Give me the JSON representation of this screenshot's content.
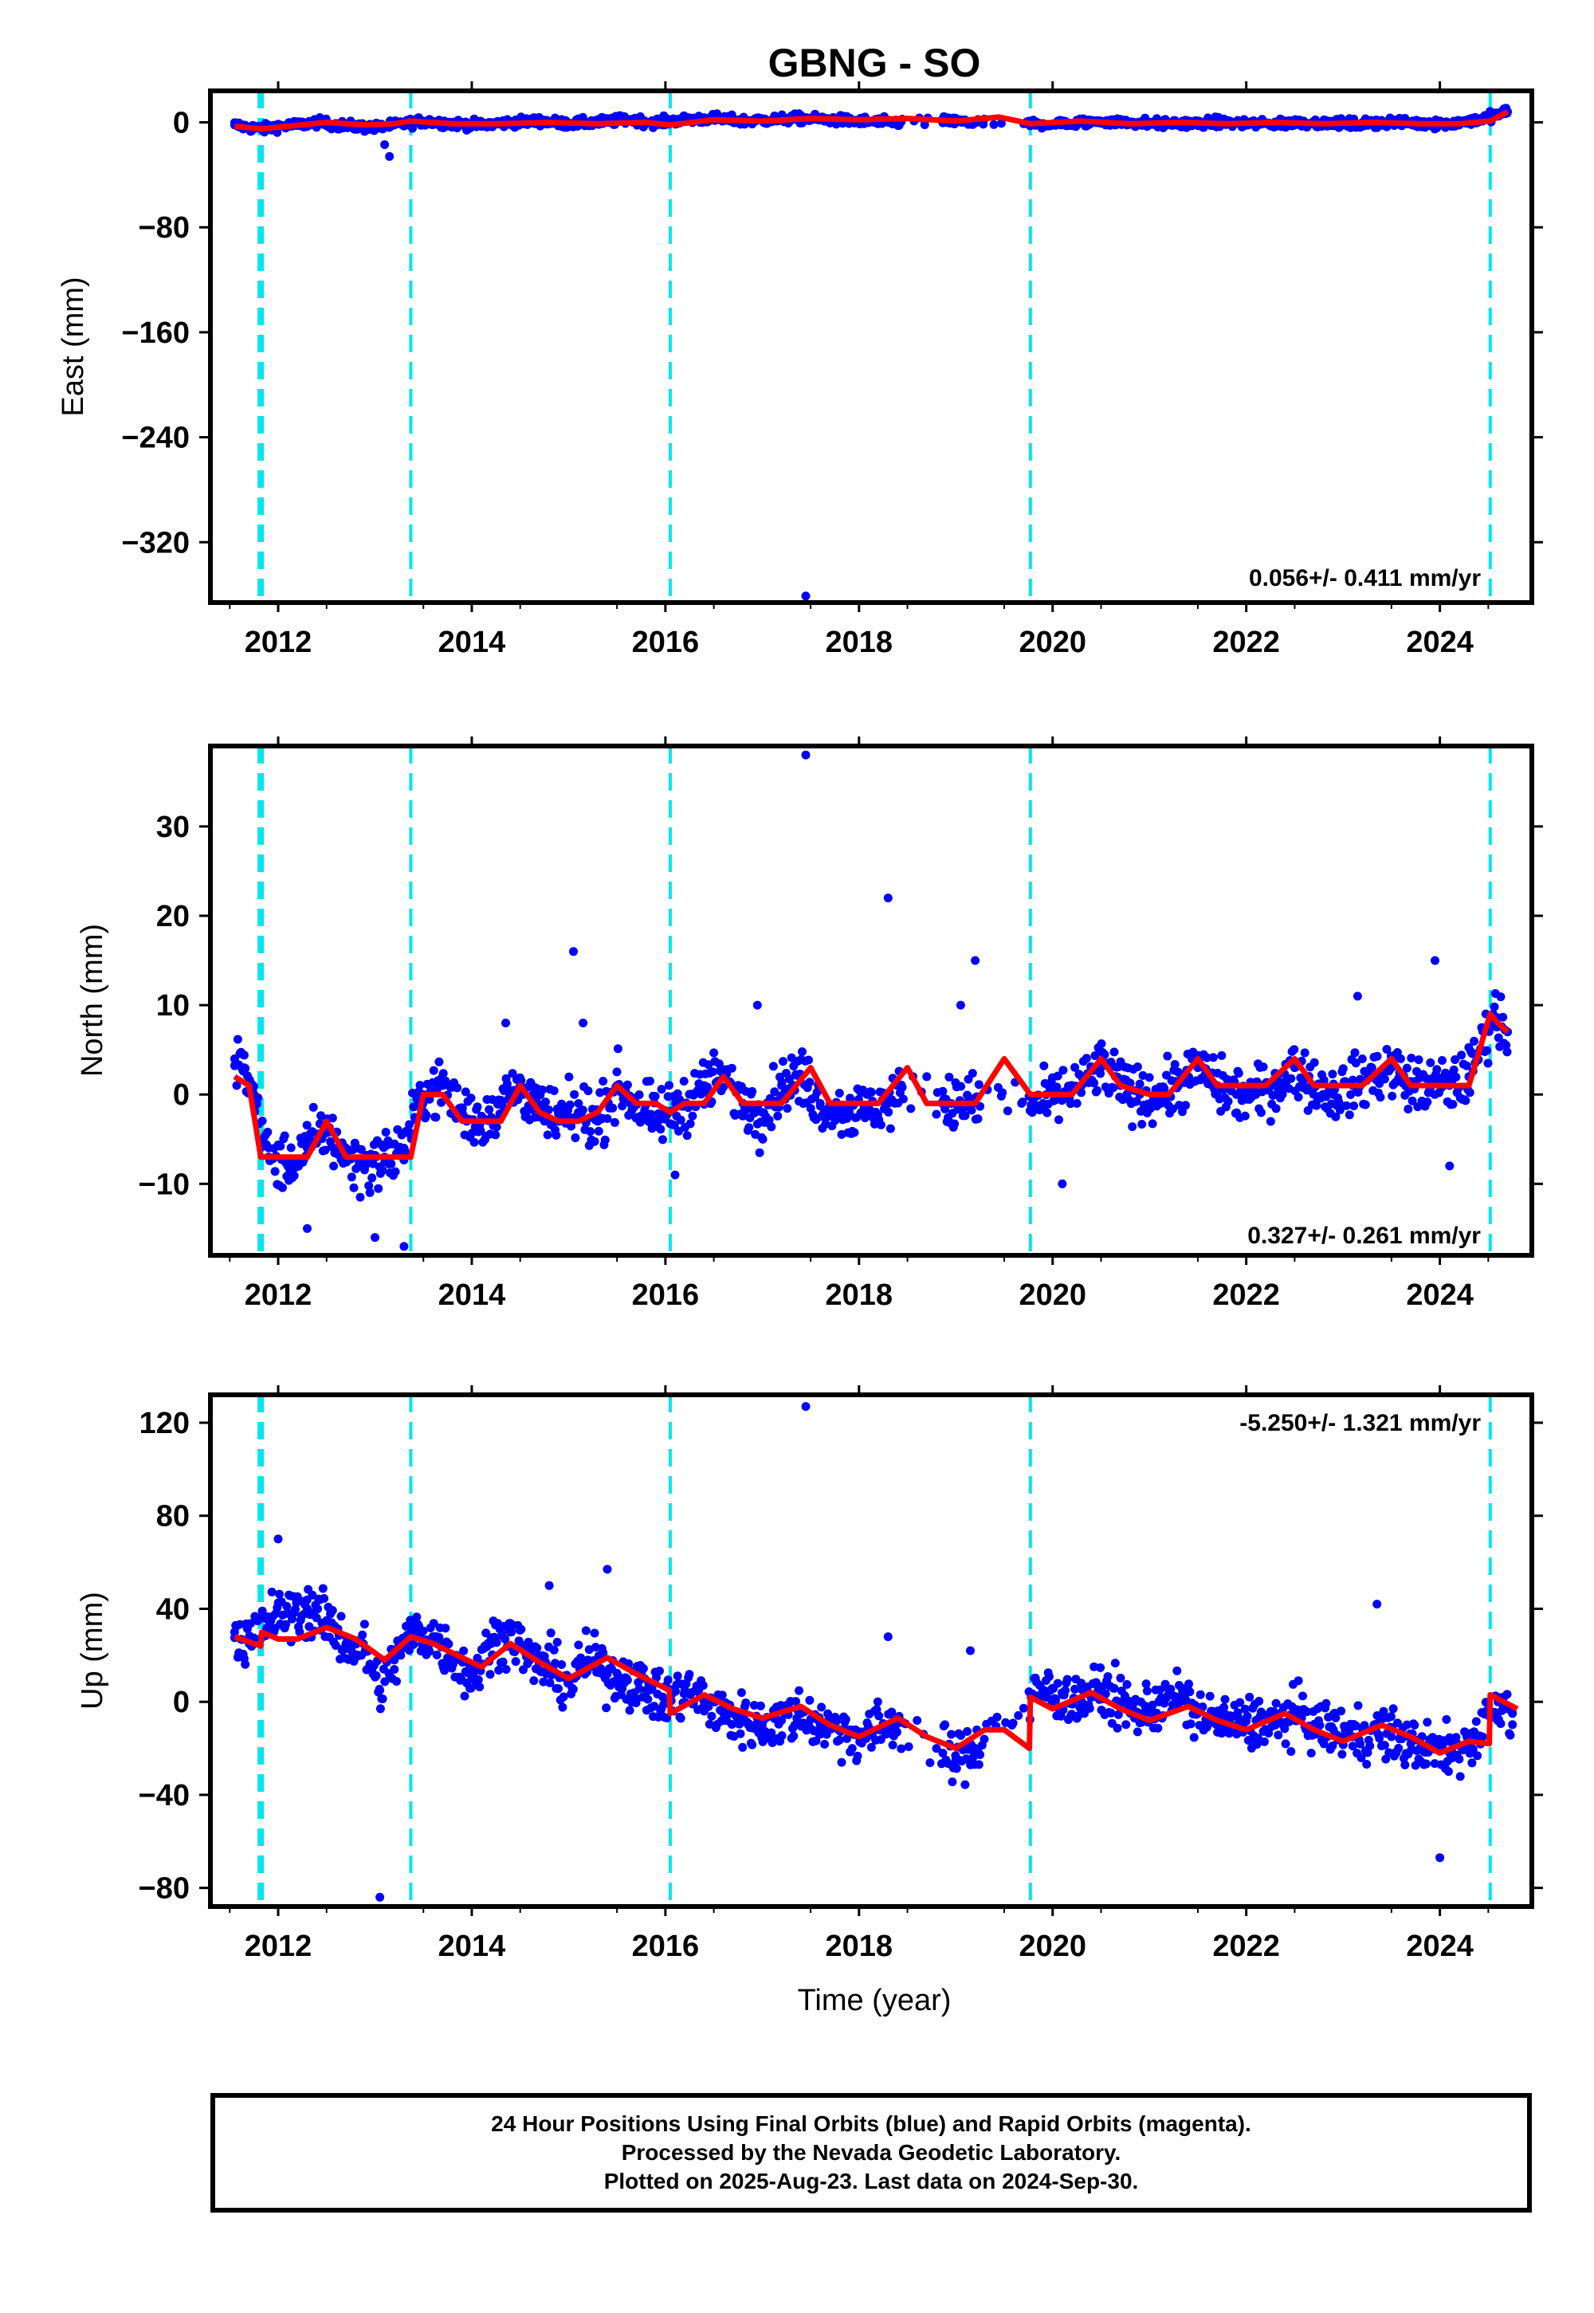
{
  "colors": {
    "final_orbit_points": "#0000ff",
    "model_fit": "#ff0000",
    "offset_lines": "#00e5ee",
    "axes": "#000000"
  },
  "footer": {
    "line1": "24 Hour Positions Using Final Orbits (blue) and Rapid Orbits (magenta).",
    "line2": "Processed by the Nevada Geodetic Laboratory.",
    "line3": "Plotted on 2025-Aug-23. Last data on 2024-Sep-30."
  },
  "chart_data": [
    {
      "type": "scatter",
      "title": "GBNG - SO",
      "ylabel": "East (mm)",
      "xlabel": "",
      "xlim": [
        2011.3,
        2024.95
      ],
      "ylim": [
        -366,
        24
      ],
      "xticks": [
        2012,
        2014,
        2016,
        2018,
        2020,
        2022,
        2024
      ],
      "yticks": [
        0,
        -80,
        -160,
        -240,
        -320
      ],
      "ytick_labels": [
        "0",
        "−80",
        "−160",
        "−240",
        "−320"
      ],
      "rate_label": "0.056+/- 0.411 mm/yr",
      "offset_lines": [
        2011.82,
        2013.37,
        2016.05,
        2019.77,
        2024.52
      ],
      "series": [
        {
          "kind": "points",
          "x": [
            2011.55,
            2011.7,
            2011.85,
            2012.0,
            2012.2,
            2012.4,
            2012.6,
            2012.8,
            2013.0,
            2013.2,
            2013.5,
            2013.8,
            2014.1,
            2014.4,
            2014.7,
            2015.0,
            2015.3,
            2015.6,
            2015.9,
            2016.2,
            2016.5,
            2016.8,
            2017.1,
            2017.4,
            2017.7,
            2018.0,
            2018.3,
            2018.9,
            2019.1,
            2019.9,
            2020.2,
            2020.5,
            2020.8,
            2021.1,
            2021.4,
            2021.7,
            2022.0,
            2022.3,
            2022.6,
            2022.9,
            2023.2,
            2023.5,
            2023.8,
            2024.1,
            2024.4,
            2024.7
          ],
          "y": [
            -2,
            -4,
            -5,
            -3,
            -2,
            0,
            -2,
            -3,
            -4,
            -2,
            1,
            -1,
            -2,
            0,
            1,
            -1,
            0,
            2,
            0,
            2,
            3,
            1,
            2,
            3,
            2,
            1,
            0,
            1,
            0,
            -1,
            -1,
            1,
            0,
            -1,
            -1,
            0,
            -1,
            -1,
            0,
            -1,
            -1,
            0,
            -1,
            -1,
            2,
            8
          ]
        },
        {
          "kind": "outliers",
          "x": [
            2013.1,
            2013.15,
            2017.45
          ],
          "y": [
            -17,
            -26,
            -361
          ]
        },
        {
          "kind": "fit",
          "x": [
            2011.55,
            2011.82,
            2012.1,
            2012.5,
            2012.9,
            2013.2,
            2013.37,
            2013.8,
            2014.3,
            2014.8,
            2015.3,
            2015.8,
            2016.05,
            2016.5,
            2017.0,
            2017.5,
            2018.0,
            2018.5,
            2019.0,
            2019.45,
            2019.77,
            2020.3,
            2020.8,
            2021.3,
            2021.8,
            2022.3,
            2022.8,
            2023.3,
            2023.8,
            2024.2,
            2024.52,
            2024.7
          ],
          "y": [
            -3,
            -5,
            -3,
            0,
            -2,
            -1,
            1,
            -1,
            -1,
            0,
            -1,
            0,
            -2,
            2,
            1,
            3,
            2,
            3,
            1,
            4,
            -1,
            1,
            -1,
            0,
            -1,
            0,
            -1,
            0,
            -1,
            -1,
            1,
            8
          ]
        }
      ]
    },
    {
      "type": "scatter",
      "title": "",
      "ylabel": "North (mm)",
      "xlabel": "",
      "xlim": [
        2011.3,
        2024.95
      ],
      "ylim": [
        -18,
        39
      ],
      "xticks": [
        2012,
        2014,
        2016,
        2018,
        2020,
        2022,
        2024
      ],
      "yticks": [
        30,
        20,
        10,
        0,
        -10
      ],
      "ytick_labels": [
        "30",
        "20",
        "10",
        "0",
        "−10"
      ],
      "rate_label": "0.327+/- 0.261 mm/yr",
      "offset_lines": [
        2011.82,
        2013.37,
        2016.05,
        2019.77,
        2024.52
      ],
      "series": [
        {
          "kind": "points",
          "x": [
            2011.55,
            2011.65,
            2011.75,
            2011.9,
            2012.1,
            2012.3,
            2012.5,
            2012.7,
            2012.9,
            2013.1,
            2013.3,
            2013.5,
            2013.7,
            2013.9,
            2014.1,
            2014.3,
            2014.5,
            2014.7,
            2014.9,
            2015.1,
            2015.3,
            2015.5,
            2015.7,
            2015.9,
            2016.2,
            2016.4,
            2016.6,
            2016.8,
            2017.0,
            2017.2,
            2017.4,
            2017.6,
            2017.9,
            2018.3,
            2018.7,
            2018.9,
            2019.1,
            2019.9,
            2020.1,
            2020.3,
            2020.5,
            2020.7,
            2020.9,
            2021.1,
            2021.3,
            2021.5,
            2021.7,
            2021.9,
            2022.1,
            2022.3,
            2022.5,
            2022.7,
            2022.9,
            2023.1,
            2023.3,
            2023.5,
            2023.7,
            2023.9,
            2024.1,
            2024.3,
            2024.55,
            2024.7
          ],
          "y": [
            4,
            3,
            0,
            -7,
            -8,
            -6,
            -4,
            -7,
            -8,
            -7,
            -6,
            0,
            1,
            -2,
            -3,
            -1,
            1,
            -2,
            -3,
            -2,
            -3,
            1,
            -1,
            -3,
            -1,
            1,
            2,
            -1,
            -2,
            1,
            2,
            -1,
            -2,
            -1,
            2,
            -1,
            -1,
            -1,
            0,
            1,
            3,
            1,
            0,
            0,
            1,
            3,
            1,
            0,
            0,
            1,
            3,
            1,
            0,
            1,
            2,
            3,
            1,
            1,
            1,
            2,
            9,
            7
          ]
        },
        {
          "kind": "outliers",
          "x": [
            2012.3,
            2013.0,
            2013.3,
            2014.35,
            2015.05,
            2015.15,
            2016.1,
            2016.95,
            2017.45,
            2018.3,
            2019.05,
            2019.2,
            2020.1,
            2023.15,
            2023.95,
            2024.1
          ],
          "y": [
            -15,
            -16,
            -17,
            8,
            16,
            8,
            -9,
            10,
            38,
            22,
            10,
            15,
            -10,
            11,
            15,
            -8
          ]
        },
        {
          "kind": "fit",
          "x": [
            2011.55,
            2011.7,
            2011.82,
            2012.1,
            2012.3,
            2012.5,
            2012.7,
            2012.9,
            2013.1,
            2013.37,
            2013.5,
            2013.7,
            2013.9,
            2014.1,
            2014.3,
            2014.5,
            2014.7,
            2014.9,
            2015.1,
            2015.3,
            2015.5,
            2015.7,
            2015.9,
            2016.05,
            2016.2,
            2016.4,
            2016.6,
            2016.8,
            2017.0,
            2017.2,
            2017.5,
            2017.7,
            2018.0,
            2018.2,
            2018.5,
            2018.7,
            2019.0,
            2019.2,
            2019.5,
            2019.77,
            2020.0,
            2020.2,
            2020.5,
            2020.7,
            2021.0,
            2021.2,
            2021.5,
            2021.7,
            2022.0,
            2022.2,
            2022.5,
            2022.7,
            2023.0,
            2023.2,
            2023.5,
            2023.7,
            2024.0,
            2024.3,
            2024.52,
            2024.6,
            2024.7
          ],
          "y": [
            2,
            1,
            -7,
            -7,
            -7,
            -3,
            -7,
            -7,
            -7,
            -7,
            0,
            0,
            -3,
            -3,
            -3,
            1,
            -2,
            -3,
            -3,
            -2,
            1,
            -1,
            -1,
            -2,
            -1,
            -1,
            2,
            -1,
            -1,
            -1,
            3,
            -1,
            -1,
            -1,
            3,
            -1,
            -1,
            -1,
            4,
            0,
            0,
            0,
            4,
            1,
            0,
            0,
            4,
            1,
            1,
            1,
            4,
            1,
            1,
            1,
            4,
            1,
            1,
            1,
            9,
            8,
            7
          ]
        }
      ]
    },
    {
      "type": "scatter",
      "title": "",
      "ylabel": "Up (mm)",
      "xlabel": "Time (year)",
      "xlim": [
        2011.3,
        2024.95
      ],
      "ylim": [
        -88,
        132
      ],
      "xticks": [
        2012,
        2014,
        2016,
        2018,
        2020,
        2022,
        2024
      ],
      "yticks": [
        120,
        80,
        40,
        0,
        -40,
        -80
      ],
      "ytick_labels": [
        "120",
        "80",
        "40",
        "0",
        "−40",
        "−80"
      ],
      "rate_label": "-5.250+/- 1.321 mm/yr",
      "offset_lines": [
        2011.82,
        2013.37,
        2016.05,
        2019.77,
        2024.52
      ],
      "series": [
        {
          "kind": "points",
          "x": [
            2011.55,
            2011.7,
            2011.9,
            2012.1,
            2012.3,
            2012.5,
            2012.7,
            2012.9,
            2013.05,
            2013.2,
            2013.4,
            2013.6,
            2013.8,
            2014.0,
            2014.2,
            2014.4,
            2014.6,
            2014.8,
            2015.0,
            2015.2,
            2015.4,
            2015.6,
            2015.8,
            2016.0,
            2016.2,
            2016.4,
            2016.6,
            2016.8,
            2017.0,
            2017.2,
            2017.4,
            2017.6,
            2017.8,
            2018.0,
            2018.3,
            2018.6,
            2018.8,
            2019.0,
            2019.2,
            2019.9,
            2020.1,
            2020.3,
            2020.5,
            2020.7,
            2020.9,
            2021.1,
            2021.3,
            2021.5,
            2021.7,
            2021.9,
            2022.1,
            2022.3,
            2022.5,
            2022.7,
            2022.9,
            2023.1,
            2023.3,
            2023.5,
            2023.7,
            2023.9,
            2024.1,
            2024.3,
            2024.6,
            2024.75
          ],
          "y": [
            30,
            25,
            35,
            38,
            40,
            35,
            25,
            22,
            5,
            18,
            30,
            28,
            20,
            10,
            25,
            30,
            18,
            15,
            8,
            18,
            12,
            10,
            5,
            0,
            5,
            0,
            -5,
            -8,
            -10,
            -8,
            -5,
            -10,
            -12,
            -15,
            -10,
            -8,
            -20,
            -25,
            -20,
            5,
            3,
            0,
            5,
            0,
            -5,
            0,
            2,
            -5,
            -8,
            -10,
            -8,
            -10,
            -5,
            -10,
            -12,
            -15,
            -12,
            -15,
            -18,
            -20,
            -22,
            -18,
            0,
            -5
          ]
        },
        {
          "kind": "outliers",
          "x": [
            2012.0,
            2013.05,
            2014.8,
            2015.4,
            2017.45,
            2018.3,
            2019.15,
            2023.35,
            2024.0
          ],
          "y": [
            70,
            -84,
            50,
            57,
            127,
            28,
            22,
            42,
            -67
          ]
        },
        {
          "kind": "fit",
          "x": [
            2011.55,
            2011.82,
            2011.83,
            2012.0,
            2012.2,
            2012.5,
            2012.8,
            2013.1,
            2013.37,
            2013.6,
            2013.9,
            2014.1,
            2014.4,
            2014.7,
            2015.0,
            2015.4,
            2015.7,
            2016.04,
            2016.05,
            2016.4,
            2016.7,
            2017.0,
            2017.4,
            2017.7,
            2018.0,
            2018.4,
            2018.7,
            2019.0,
            2019.3,
            2019.5,
            2019.76,
            2019.77,
            2020.0,
            2020.4,
            2020.7,
            2021.0,
            2021.4,
            2021.7,
            2022.0,
            2022.4,
            2022.7,
            2023.0,
            2023.4,
            2023.7,
            2024.0,
            2024.3,
            2024.51,
            2024.52,
            2024.8
          ],
          "y": [
            28,
            24,
            30,
            27,
            27,
            32,
            27,
            18,
            28,
            25,
            19,
            15,
            25,
            17,
            10,
            19,
            12,
            5,
            -5,
            3,
            -3,
            -7,
            -2,
            -10,
            -15,
            -7,
            -15,
            -20,
            -12,
            -12,
            -20,
            2,
            -3,
            4,
            -3,
            -8,
            -2,
            -8,
            -12,
            -5,
            -12,
            -17,
            -10,
            -15,
            -22,
            -17,
            -18,
            3,
            -3
          ]
        }
      ]
    }
  ]
}
